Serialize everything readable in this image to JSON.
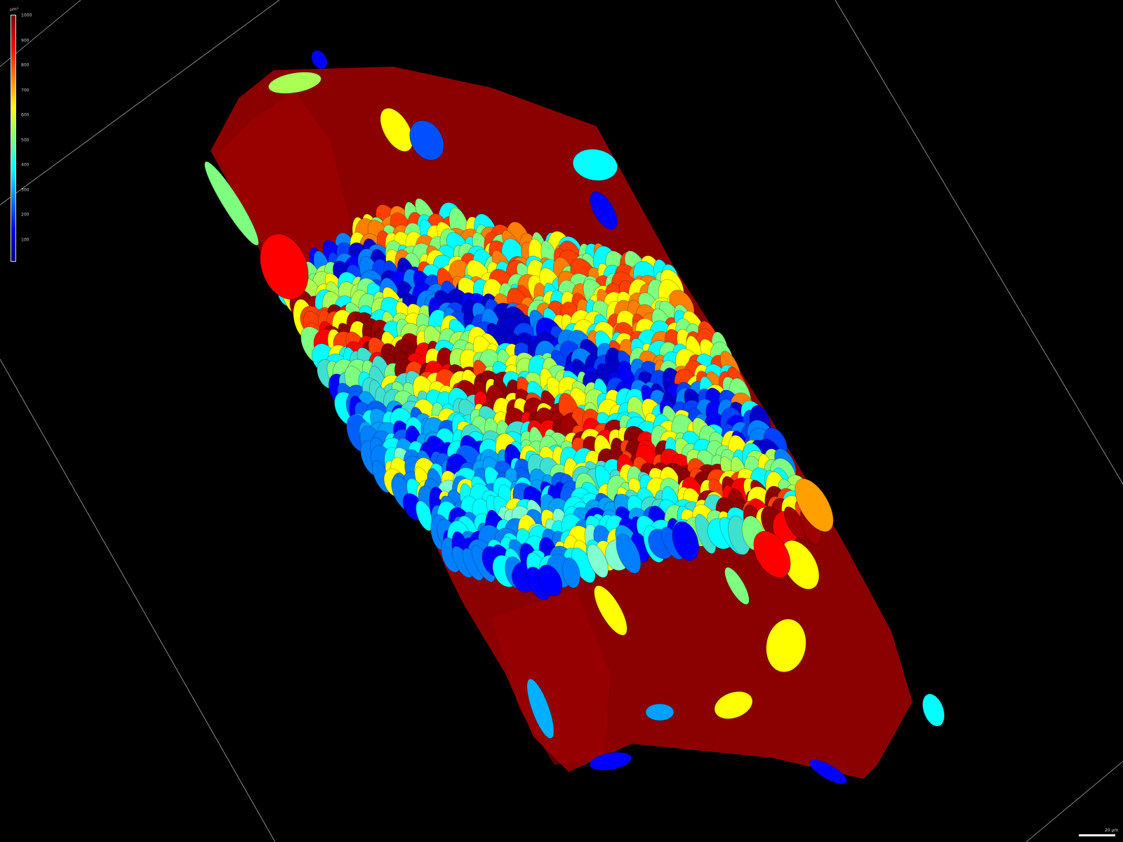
{
  "colorbar": {
    "unit": "µm³",
    "min": 0,
    "max": 1000,
    "ticks": [
      "1000",
      "900",
      "800",
      "700",
      "600",
      "500",
      "400",
      "300",
      "200",
      "100"
    ],
    "colormap": [
      "#00007f",
      "#0000ff",
      "#007fff",
      "#00ffff",
      "#7fff7f",
      "#ffff00",
      "#ff7f00",
      "#ff0000",
      "#7f0000"
    ]
  },
  "scalebar": {
    "label": "20 µm"
  },
  "colors": {
    "background": "#000000",
    "body": "#8b0000",
    "bounding_lines": "#bbbbbb"
  }
}
